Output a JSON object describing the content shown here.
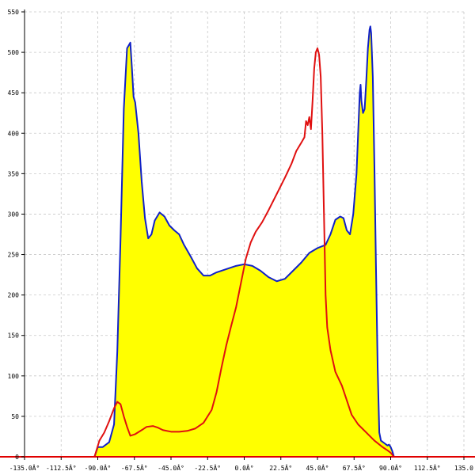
{
  "chart_data": {
    "type": "area",
    "title": "",
    "xlabel": "",
    "ylabel": "",
    "xlim": [
      -135,
      135
    ],
    "ylim": [
      0,
      550
    ],
    "grid": true,
    "colors": {
      "fill": "#ffff00",
      "blue_line": "#1020c8",
      "red_line": "#e01010",
      "axis": "#e00000",
      "grid": "#c8c8c8"
    },
    "x_ticks": [
      {
        "value": -135,
        "label": "-135.0Â°"
      },
      {
        "value": -112.5,
        "label": "-112.5Â°"
      },
      {
        "value": -90,
        "label": "-90.0Â°"
      },
      {
        "value": -67.5,
        "label": "-67.5Â°"
      },
      {
        "value": -45,
        "label": "-45.0Â°"
      },
      {
        "value": -22.5,
        "label": "-22.5Â°"
      },
      {
        "value": 0,
        "label": "0.0Â°"
      },
      {
        "value": 22.5,
        "label": "22.5Â°"
      },
      {
        "value": 45,
        "label": "45.0Â°"
      },
      {
        "value": 67.5,
        "label": "67.5Â°"
      },
      {
        "value": 90,
        "label": "90.0Â°"
      },
      {
        "value": 112.5,
        "label": "112.5Â°"
      },
      {
        "value": 135,
        "label": "135.0"
      }
    ],
    "y_ticks": [
      {
        "value": 0,
        "label": "0"
      },
      {
        "value": 50,
        "label": "50"
      },
      {
        "value": 100,
        "label": "100"
      },
      {
        "value": 150,
        "label": "150"
      },
      {
        "value": 200,
        "label": "200"
      },
      {
        "value": 250,
        "label": "250"
      },
      {
        "value": 300,
        "label": "300"
      },
      {
        "value": 350,
        "label": "350"
      },
      {
        "value": 400,
        "label": "400"
      },
      {
        "value": 450,
        "label": "450"
      },
      {
        "value": 500,
        "label": "500"
      },
      {
        "value": 550,
        "label": "550"
      }
    ],
    "series": [
      {
        "color": "#1020c8",
        "filled": true,
        "points": [
          [
            -92,
            0
          ],
          [
            -90,
            12
          ],
          [
            -87,
            12
          ],
          [
            -83,
            18
          ],
          [
            -80,
            40
          ],
          [
            -78,
            130
          ],
          [
            -76,
            270
          ],
          [
            -74,
            430
          ],
          [
            -72,
            505
          ],
          [
            -70,
            512
          ],
          [
            -69,
            480
          ],
          [
            -68,
            445
          ],
          [
            -67,
            438
          ],
          [
            -65,
            400
          ],
          [
            -63,
            340
          ],
          [
            -61,
            295
          ],
          [
            -59,
            270
          ],
          [
            -57,
            275
          ],
          [
            -55,
            292
          ],
          [
            -52,
            302
          ],
          [
            -49,
            297
          ],
          [
            -46,
            286
          ],
          [
            -43,
            280
          ],
          [
            -40,
            275
          ],
          [
            -37,
            262
          ],
          [
            -33,
            248
          ],
          [
            -29,
            233
          ],
          [
            -25,
            224
          ],
          [
            -21,
            224
          ],
          [
            -17,
            228
          ],
          [
            -11,
            232
          ],
          [
            -5,
            236
          ],
          [
            0,
            238
          ],
          [
            5,
            236
          ],
          [
            10,
            230
          ],
          [
            15,
            222
          ],
          [
            20,
            217
          ],
          [
            25,
            220
          ],
          [
            30,
            230
          ],
          [
            35,
            240
          ],
          [
            40,
            252
          ],
          [
            45,
            258
          ],
          [
            50,
            262
          ],
          [
            53,
            275
          ],
          [
            56,
            293
          ],
          [
            59,
            297
          ],
          [
            61,
            295
          ],
          [
            63,
            280
          ],
          [
            65,
            275
          ],
          [
            67,
            300
          ],
          [
            69,
            350
          ],
          [
            70,
            400
          ],
          [
            71,
            450
          ],
          [
            71.5,
            460
          ],
          [
            72,
            440
          ],
          [
            73,
            425
          ],
          [
            74,
            430
          ],
          [
            75,
            465
          ],
          [
            76,
            505
          ],
          [
            77,
            528
          ],
          [
            77.5,
            532
          ],
          [
            78,
            524
          ],
          [
            79,
            470
          ],
          [
            80,
            360
          ],
          [
            81,
            230
          ],
          [
            82,
            110
          ],
          [
            83,
            30
          ],
          [
            84,
            20
          ],
          [
            86,
            17
          ],
          [
            88,
            14
          ],
          [
            89,
            15
          ],
          [
            90,
            12
          ],
          [
            91,
            7
          ],
          [
            92,
            0
          ]
        ]
      },
      {
        "color": "#e01010",
        "filled": false,
        "points": [
          [
            -92,
            0
          ],
          [
            -89,
            20
          ],
          [
            -86,
            30
          ],
          [
            -83,
            44
          ],
          [
            -80,
            60
          ],
          [
            -78,
            68
          ],
          [
            -76,
            65
          ],
          [
            -74,
            50
          ],
          [
            -72,
            37
          ],
          [
            -70,
            26
          ],
          [
            -67,
            28
          ],
          [
            -63,
            33
          ],
          [
            -60,
            37
          ],
          [
            -56,
            38
          ],
          [
            -53,
            36
          ],
          [
            -50,
            33
          ],
          [
            -45,
            31
          ],
          [
            -40,
            31
          ],
          [
            -35,
            32
          ],
          [
            -30,
            35
          ],
          [
            -25,
            42
          ],
          [
            -20,
            58
          ],
          [
            -17,
            80
          ],
          [
            -14,
            110
          ],
          [
            -11,
            138
          ],
          [
            -8,
            162
          ],
          [
            -5,
            185
          ],
          [
            -2,
            215
          ],
          [
            1,
            245
          ],
          [
            4,
            265
          ],
          [
            7,
            278
          ],
          [
            11,
            290
          ],
          [
            15,
            305
          ],
          [
            20,
            325
          ],
          [
            25,
            345
          ],
          [
            29,
            362
          ],
          [
            32,
            378
          ],
          [
            35,
            388
          ],
          [
            37,
            395
          ],
          [
            38,
            415
          ],
          [
            39,
            410
          ],
          [
            40,
            420
          ],
          [
            41,
            405
          ],
          [
            42,
            440
          ],
          [
            43,
            480
          ],
          [
            44,
            500
          ],
          [
            45,
            505
          ],
          [
            46,
            497
          ],
          [
            47,
            470
          ],
          [
            48,
            400
          ],
          [
            49,
            300
          ],
          [
            50,
            200
          ],
          [
            51,
            160
          ],
          [
            53,
            132
          ],
          [
            56,
            105
          ],
          [
            60,
            88
          ],
          [
            63,
            70
          ],
          [
            66,
            52
          ],
          [
            70,
            40
          ],
          [
            75,
            30
          ],
          [
            80,
            20
          ],
          [
            85,
            12
          ],
          [
            88,
            8
          ],
          [
            90,
            5
          ],
          [
            92,
            0
          ]
        ]
      }
    ]
  }
}
